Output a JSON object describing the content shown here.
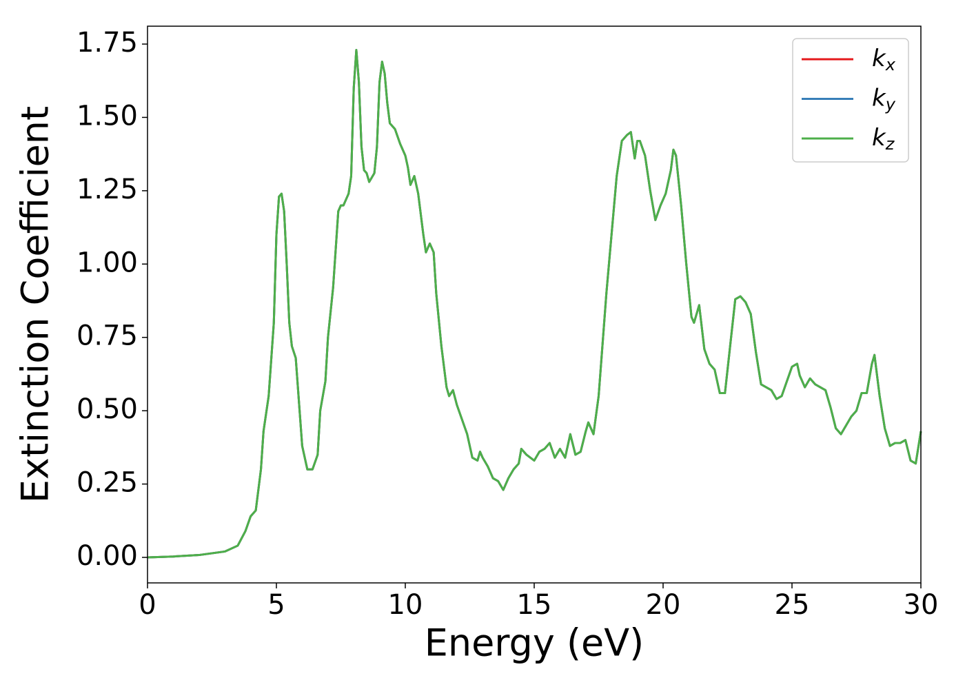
{
  "chart_data": {
    "type": "line",
    "xlabel": "Energy (eV)",
    "ylabel": "Extinction Coefficient",
    "xlim": [
      0,
      30
    ],
    "ylim": [
      -0.087,
      1.811
    ],
    "xticks": [
      0,
      5,
      10,
      15,
      20,
      25,
      30
    ],
    "yticks": [
      {
        "value": 0,
        "label": "0.00"
      },
      {
        "value": 0.25,
        "label": "0.25"
      },
      {
        "value": 0.5,
        "label": "0.50"
      },
      {
        "value": 0.75,
        "label": "0.75"
      },
      {
        "value": 1,
        "label": "1.00"
      },
      {
        "value": 1.25,
        "label": "1.25"
      },
      {
        "value": 1.5,
        "label": "1.50"
      },
      {
        "value": 1.75,
        "label": "1.75"
      }
    ],
    "legend": "upper right",
    "x": [
      0,
      1,
      2,
      3,
      3.5,
      3.8,
      4.0,
      4.2,
      4.4,
      4.5,
      4.7,
      4.9,
      5.0,
      5.1,
      5.2,
      5.3,
      5.4,
      5.5,
      5.6,
      5.75,
      5.9,
      6.0,
      6.2,
      6.4,
      6.6,
      6.7,
      6.9,
      7.0,
      7.2,
      7.3,
      7.4,
      7.5,
      7.6,
      7.8,
      7.9,
      8.0,
      8.1,
      8.2,
      8.3,
      8.4,
      8.5,
      8.6,
      8.8,
      8.9,
      9.0,
      9.1,
      9.2,
      9.3,
      9.4,
      9.6,
      9.8,
      10.0,
      10.1,
      10.2,
      10.35,
      10.5,
      10.7,
      10.8,
      10.95,
      11.1,
      11.2,
      11.4,
      11.6,
      11.7,
      11.85,
      12.0,
      12.2,
      12.4,
      12.6,
      12.8,
      12.9,
      13.0,
      13.2,
      13.4,
      13.6,
      13.8,
      14.0,
      14.2,
      14.4,
      14.5,
      14.7,
      15.0,
      15.2,
      15.4,
      15.6,
      15.8,
      16.0,
      16.2,
      16.4,
      16.6,
      16.8,
      17.0,
      17.1,
      17.3,
      17.5,
      17.8,
      18.0,
      18.2,
      18.4,
      18.6,
      18.75,
      18.9,
      19.0,
      19.1,
      19.3,
      19.5,
      19.7,
      19.9,
      20.1,
      20.3,
      20.4,
      20.5,
      20.7,
      20.9,
      21.1,
      21.2,
      21.3,
      21.4,
      21.6,
      21.8,
      22.0,
      22.2,
      22.4,
      22.6,
      22.8,
      23.0,
      23.2,
      23.4,
      23.6,
      23.8,
      24.0,
      24.2,
      24.4,
      24.6,
      24.8,
      25.0,
      25.2,
      25.3,
      25.5,
      25.7,
      25.9,
      26.1,
      26.3,
      26.5,
      26.7,
      26.9,
      27.1,
      27.3,
      27.5,
      27.7,
      27.9,
      28.1,
      28.2,
      28.4,
      28.6,
      28.8,
      29.0,
      29.2,
      29.4,
      29.6,
      29.8,
      30.0
    ],
    "series": [
      {
        "name": "kx",
        "color": "#e41a1c",
        "values": [
          0,
          0.003,
          0.008,
          0.02,
          0.04,
          0.09,
          0.14,
          0.16,
          0.3,
          0.43,
          0.55,
          0.8,
          1.1,
          1.23,
          1.24,
          1.18,
          1.0,
          0.8,
          0.72,
          0.68,
          0.5,
          0.38,
          0.3,
          0.3,
          0.35,
          0.5,
          0.6,
          0.75,
          0.92,
          1.05,
          1.18,
          1.2,
          1.2,
          1.24,
          1.3,
          1.6,
          1.73,
          1.62,
          1.4,
          1.32,
          1.31,
          1.28,
          1.31,
          1.4,
          1.62,
          1.69,
          1.65,
          1.55,
          1.48,
          1.46,
          1.41,
          1.37,
          1.33,
          1.27,
          1.3,
          1.24,
          1.1,
          1.04,
          1.07,
          1.04,
          0.9,
          0.72,
          0.58,
          0.55,
          0.57,
          0.52,
          0.47,
          0.42,
          0.34,
          0.33,
          0.36,
          0.34,
          0.31,
          0.27,
          0.26,
          0.23,
          0.27,
          0.3,
          0.32,
          0.37,
          0.35,
          0.33,
          0.36,
          0.37,
          0.39,
          0.34,
          0.37,
          0.34,
          0.42,
          0.35,
          0.36,
          0.43,
          0.46,
          0.42,
          0.55,
          0.9,
          1.1,
          1.3,
          1.42,
          1.44,
          1.45,
          1.36,
          1.42,
          1.42,
          1.37,
          1.25,
          1.15,
          1.2,
          1.24,
          1.32,
          1.39,
          1.37,
          1.2,
          1.0,
          0.82,
          0.8,
          0.83,
          0.86,
          0.71,
          0.66,
          0.64,
          0.56,
          0.56,
          0.72,
          0.88,
          0.89,
          0.87,
          0.83,
          0.7,
          0.59,
          0.58,
          0.57,
          0.54,
          0.55,
          0.6,
          0.65,
          0.66,
          0.62,
          0.58,
          0.61,
          0.59,
          0.58,
          0.57,
          0.51,
          0.44,
          0.42,
          0.45,
          0.48,
          0.5,
          0.56,
          0.56,
          0.66,
          0.69,
          0.55,
          0.44,
          0.38,
          0.39,
          0.39,
          0.4,
          0.33,
          0.32,
          0.43
        ]
      },
      {
        "name": "ky",
        "color": "#377eb8",
        "values": [
          0,
          0.003,
          0.008,
          0.02,
          0.04,
          0.09,
          0.14,
          0.16,
          0.3,
          0.43,
          0.55,
          0.8,
          1.1,
          1.23,
          1.24,
          1.18,
          1.0,
          0.8,
          0.72,
          0.68,
          0.5,
          0.38,
          0.3,
          0.3,
          0.35,
          0.5,
          0.6,
          0.75,
          0.92,
          1.05,
          1.18,
          1.2,
          1.2,
          1.24,
          1.3,
          1.6,
          1.73,
          1.62,
          1.4,
          1.32,
          1.31,
          1.28,
          1.31,
          1.4,
          1.62,
          1.69,
          1.65,
          1.55,
          1.48,
          1.46,
          1.41,
          1.37,
          1.33,
          1.27,
          1.3,
          1.24,
          1.1,
          1.04,
          1.07,
          1.04,
          0.9,
          0.72,
          0.58,
          0.55,
          0.57,
          0.52,
          0.47,
          0.42,
          0.34,
          0.33,
          0.36,
          0.34,
          0.31,
          0.27,
          0.26,
          0.23,
          0.27,
          0.3,
          0.32,
          0.37,
          0.35,
          0.33,
          0.36,
          0.37,
          0.39,
          0.34,
          0.37,
          0.34,
          0.42,
          0.35,
          0.36,
          0.43,
          0.46,
          0.42,
          0.55,
          0.9,
          1.1,
          1.3,
          1.42,
          1.44,
          1.45,
          1.36,
          1.42,
          1.42,
          1.37,
          1.25,
          1.15,
          1.2,
          1.24,
          1.32,
          1.39,
          1.37,
          1.2,
          1.0,
          0.82,
          0.8,
          0.83,
          0.86,
          0.71,
          0.66,
          0.64,
          0.56,
          0.56,
          0.72,
          0.88,
          0.89,
          0.87,
          0.83,
          0.7,
          0.59,
          0.58,
          0.57,
          0.54,
          0.55,
          0.6,
          0.65,
          0.66,
          0.62,
          0.58,
          0.61,
          0.59,
          0.58,
          0.57,
          0.51,
          0.44,
          0.42,
          0.45,
          0.48,
          0.5,
          0.56,
          0.56,
          0.66,
          0.69,
          0.55,
          0.44,
          0.38,
          0.39,
          0.39,
          0.4,
          0.33,
          0.32,
          0.43
        ]
      },
      {
        "name": "kz",
        "color": "#4daf4a",
        "values": [
          0,
          0.003,
          0.008,
          0.02,
          0.04,
          0.09,
          0.14,
          0.16,
          0.3,
          0.43,
          0.55,
          0.8,
          1.1,
          1.23,
          1.24,
          1.18,
          1.0,
          0.8,
          0.72,
          0.68,
          0.5,
          0.38,
          0.3,
          0.3,
          0.35,
          0.5,
          0.6,
          0.75,
          0.92,
          1.05,
          1.18,
          1.2,
          1.2,
          1.24,
          1.3,
          1.6,
          1.73,
          1.62,
          1.4,
          1.32,
          1.31,
          1.28,
          1.31,
          1.4,
          1.62,
          1.69,
          1.65,
          1.55,
          1.48,
          1.46,
          1.41,
          1.37,
          1.33,
          1.27,
          1.3,
          1.24,
          1.1,
          1.04,
          1.07,
          1.04,
          0.9,
          0.72,
          0.58,
          0.55,
          0.57,
          0.52,
          0.47,
          0.42,
          0.34,
          0.33,
          0.36,
          0.34,
          0.31,
          0.27,
          0.26,
          0.23,
          0.27,
          0.3,
          0.32,
          0.37,
          0.35,
          0.33,
          0.36,
          0.37,
          0.39,
          0.34,
          0.37,
          0.34,
          0.42,
          0.35,
          0.36,
          0.43,
          0.46,
          0.42,
          0.55,
          0.9,
          1.1,
          1.3,
          1.42,
          1.44,
          1.45,
          1.36,
          1.42,
          1.42,
          1.37,
          1.25,
          1.15,
          1.2,
          1.24,
          1.32,
          1.39,
          1.37,
          1.2,
          1.0,
          0.82,
          0.8,
          0.83,
          0.86,
          0.71,
          0.66,
          0.64,
          0.56,
          0.56,
          0.72,
          0.88,
          0.89,
          0.87,
          0.83,
          0.7,
          0.59,
          0.58,
          0.57,
          0.54,
          0.55,
          0.6,
          0.65,
          0.66,
          0.62,
          0.58,
          0.61,
          0.59,
          0.58,
          0.57,
          0.51,
          0.44,
          0.42,
          0.45,
          0.48,
          0.5,
          0.56,
          0.56,
          0.66,
          0.69,
          0.55,
          0.44,
          0.38,
          0.39,
          0.39,
          0.4,
          0.33,
          0.32,
          0.43
        ]
      }
    ]
  }
}
